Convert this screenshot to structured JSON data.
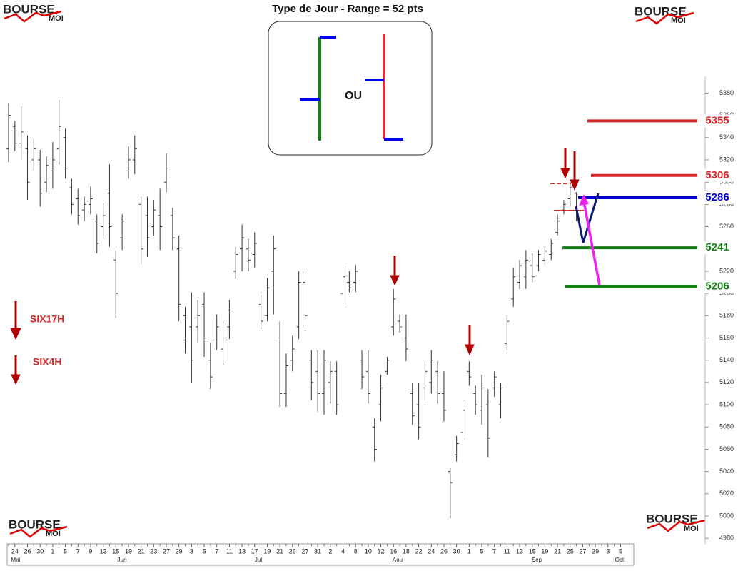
{
  "chart_data": {
    "type": "ohlc",
    "title": "Type de Jour - Range = 52 pts",
    "inset_text": "OU",
    "logo": {
      "word": "BOURSE",
      "sub": "MOI"
    },
    "annotations": [
      "SIX17H",
      "SIX4H"
    ],
    "months": [
      "Mai",
      "Jun",
      "Jul",
      "Aou",
      "Sep",
      "Oct"
    ],
    "categories": [
      null,
      "24",
      null,
      "26",
      null,
      "30",
      null,
      "1",
      null,
      "5",
      null,
      "7",
      null,
      "9",
      null,
      "13",
      null,
      "15",
      null,
      "19",
      null,
      "21",
      null,
      "23",
      null,
      "27",
      null,
      "29",
      null,
      "3",
      null,
      "5",
      null,
      "7",
      null,
      "11",
      null,
      "13",
      null,
      "17",
      null,
      "19",
      null,
      "21",
      null,
      "25",
      null,
      "27",
      null,
      "31",
      null,
      "2",
      null,
      "4",
      null,
      "8",
      null,
      "10",
      null,
      "12",
      null,
      "16",
      null,
      "18",
      null,
      "22",
      null,
      "24",
      null,
      "26",
      null,
      "30",
      null,
      "1",
      null,
      "5",
      null,
      "7",
      null,
      "11",
      null,
      "13",
      null,
      "15",
      null,
      "19",
      null,
      "21",
      null,
      "25",
      null,
      "27",
      null,
      "29",
      null,
      "3",
      null,
      "5"
    ],
    "open": [
      5330,
      5350,
      5335,
      5330,
      5320,
      5320,
      5300,
      5310,
      5330,
      5340,
      5295,
      5285,
      5275,
      5280,
      5265,
      5260,
      5290,
      5230,
      5250,
      5310,
      5320,
      5280,
      5270,
      5260,
      5270,
      5300,
      5270,
      5240,
      5180,
      5170,
      5170,
      5190,
      5140,
      5160,
      5150,
      5170,
      5220,
      5240,
      5240,
      5235,
      5190,
      5180,
      5220,
      5160,
      5110,
      5140,
      5170,
      5210,
      5140,
      5130,
      5110,
      5120,
      5130,
      5200,
      5210,
      5210,
      5140,
      5130,
      5080,
      5100,
      5130,
      5170,
      5175,
      5160,
      5110,
      5100,
      5115,
      5120,
      5130,
      5110,
      5040,
      5055,
      5075,
      5130,
      5110,
      5095,
      5100,
      5115,
      5100,
      5155,
      5195,
      5210,
      5215,
      5225,
      5225,
      5230,
      5235,
      5255,
      5275,
      5285,
      5290,
      null,
      null,
      null,
      null,
      null,
      null,
      null
    ],
    "high": [
      5371,
      5355,
      5368,
      5342,
      5339,
      5329,
      5323,
      5336,
      5374,
      5348,
      5303,
      5294,
      5287,
      5296,
      5271,
      5281,
      5316,
      5239,
      5271,
      5332,
      5342,
      5287,
      5287,
      5284,
      5294,
      5326,
      5277,
      5252,
      5188,
      5201,
      5194,
      5201,
      5156,
      5181,
      5175,
      5194,
      5242,
      5262,
      5249,
      5255,
      5201,
      5214,
      5252,
      5175,
      5146,
      5162,
      5220,
      5220,
      5149,
      5149,
      5149,
      5139,
      5139,
      5223,
      5220,
      5226,
      5149,
      5149,
      5088,
      5127,
      5143,
      5204,
      5181,
      5181,
      5120,
      5120,
      5139,
      5149,
      5139,
      5130,
      5043,
      5072,
      5104,
      5139,
      5117,
      5127,
      5114,
      5130,
      5120,
      5181,
      5223,
      5230,
      5239,
      5236,
      5239,
      5242,
      5249,
      5271,
      5284,
      5300,
      5291,
      null,
      null,
      null,
      null,
      null,
      null,
      null
    ],
    "low": [
      5318,
      5328,
      5320,
      5284,
      5310,
      5278,
      5291,
      5294,
      5316,
      5303,
      5271,
      5262,
      5265,
      5271,
      5236,
      5249,
      5242,
      5178,
      5239,
      5303,
      5307,
      5226,
      5233,
      5252,
      5239,
      5291,
      5239,
      5175,
      5146,
      5120,
      5156,
      5143,
      5114,
      5149,
      5136,
      5159,
      5213,
      5220,
      5220,
      5223,
      5168,
      5175,
      5181,
      5098,
      5098,
      5130,
      5159,
      5168,
      5104,
      5094,
      5091,
      5101,
      5091,
      5191,
      5201,
      5201,
      5114,
      5101,
      5049,
      5085,
      5127,
      5162,
      5165,
      5139,
      5082,
      5069,
      5104,
      5110,
      5101,
      5085,
      4998,
      5049,
      5069,
      5117,
      5091,
      5082,
      5053,
      5107,
      5088,
      5149,
      5188,
      5204,
      5204,
      5210,
      5220,
      5226,
      5230,
      5252,
      5271,
      5278,
      5265,
      null,
      null,
      null,
      null,
      null,
      null,
      null
    ],
    "close": [
      5360,
      5335,
      5345,
      5300,
      5330,
      5290,
      5315,
      5320,
      5350,
      5310,
      5280,
      5270,
      5280,
      5285,
      5245,
      5270,
      5260,
      5200,
      5265,
      5320,
      5330,
      5240,
      5250,
      5275,
      5260,
      5310,
      5250,
      5190,
      5160,
      5140,
      5180,
      5160,
      5125,
      5170,
      5160,
      5185,
      5235,
      5250,
      5230,
      5245,
      5175,
      5205,
      5240,
      5110,
      5135,
      5150,
      5210,
      5180,
      5120,
      5110,
      5140,
      5130,
      5100,
      5215,
      5205,
      5220,
      5125,
      5110,
      5060,
      5115,
      5140,
      5195,
      5170,
      5150,
      5090,
      5080,
      5130,
      5140,
      5110,
      5095,
      5030,
      5065,
      5095,
      5125,
      5100,
      5115,
      5070,
      5125,
      5115,
      5175,
      5215,
      5225,
      5230,
      5215,
      5235,
      5238,
      5245,
      5265,
      5280,
      5295,
      5275,
      null,
      null,
      null,
      null,
      null,
      null,
      null
    ],
    "color": "#333333",
    "levels": [
      {
        "value": 5355,
        "color": "#d62728"
      },
      {
        "value": 5306,
        "color": "#d62728"
      },
      {
        "value": 5286,
        "color": "#0000cc"
      },
      {
        "value": 5241,
        "color": "#138013"
      },
      {
        "value": 5206,
        "color": "#138013"
      }
    ],
    "ylim": [
      4975,
      5395
    ],
    "yticks": [
      4980,
      5000,
      5020,
      5040,
      5060,
      5080,
      5100,
      5120,
      5140,
      5160,
      5180,
      5200,
      5220,
      5240,
      5260,
      5280,
      5300,
      5320,
      5340,
      5360,
      5380
    ]
  }
}
